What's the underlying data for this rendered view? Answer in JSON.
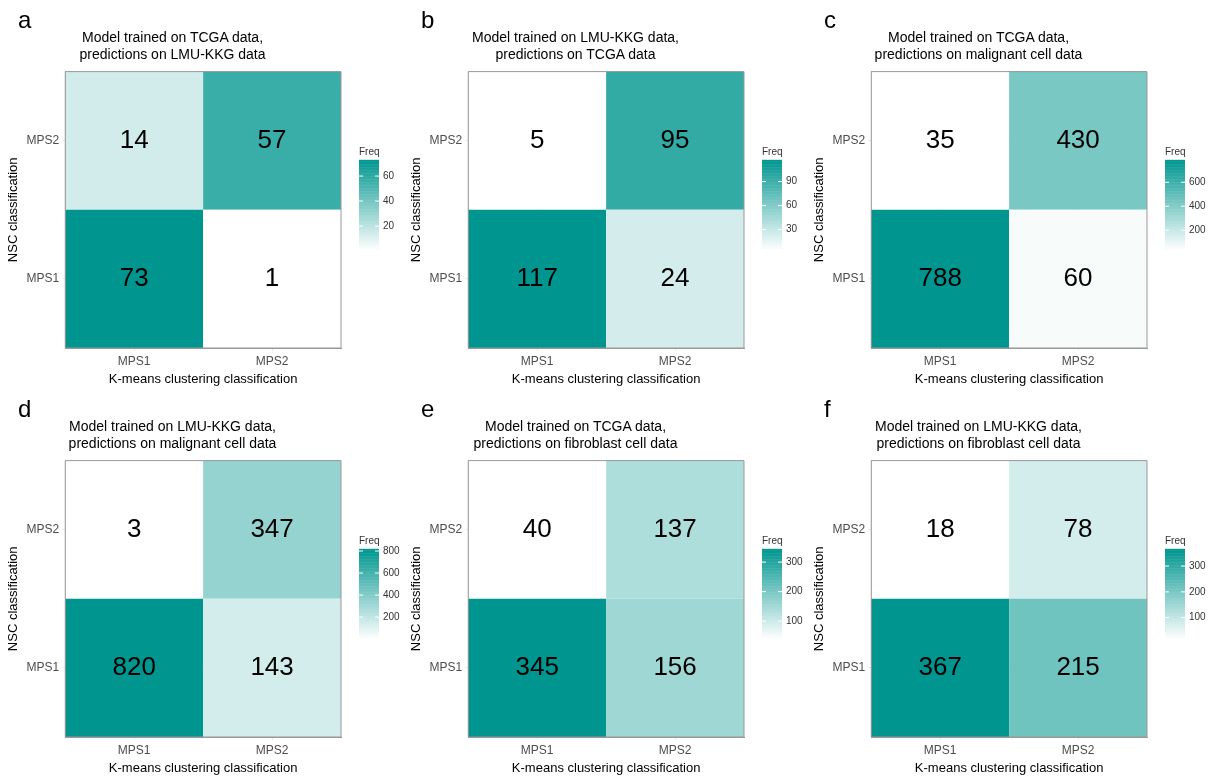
{
  "chart_data": [
    {
      "type": "heatmap",
      "title": "Model trained on TCGA data,\npredictions on LMU-KKG data",
      "xlabel": "K-means clustering classification",
      "ylabel": "NSC classification",
      "clabel": "Freq",
      "annotations": [
        "a"
      ],
      "categories": [
        "MPS1",
        "MPS2"
      ],
      "y_categories": [
        "MPS2",
        "MPS1"
      ],
      "cells": [
        [
          14,
          57
        ],
        [
          73,
          1
        ]
      ],
      "clim": [
        1,
        73
      ],
      "cticks": [
        20,
        40,
        60
      ],
      "data_labels": true
    },
    {
      "type": "heatmap",
      "title": "Model trained on LMU-KKG data,\npredictions on TCGA data",
      "xlabel": "K-means clustering classification",
      "ylabel": "NSC classification",
      "clabel": "Freq",
      "annotations": [
        "b"
      ],
      "categories": [
        "MPS1",
        "MPS2"
      ],
      "y_categories": [
        "MPS2",
        "MPS1"
      ],
      "cells": [
        [
          5,
          95
        ],
        [
          117,
          24
        ]
      ],
      "clim": [
        5,
        117
      ],
      "cticks": [
        30,
        60,
        90
      ],
      "data_labels": true
    },
    {
      "type": "heatmap",
      "title": "Model trained on TCGA data,\npredictions on malignant cell data",
      "xlabel": "K-means clustering classification",
      "ylabel": "NSC classification",
      "clabel": "Freq",
      "annotations": [
        "c"
      ],
      "categories": [
        "MPS1",
        "MPS2"
      ],
      "y_categories": [
        "MPS2",
        "MPS1"
      ],
      "cells": [
        [
          35,
          430
        ],
        [
          788,
          60
        ]
      ],
      "clim": [
        35,
        788
      ],
      "cticks": [
        200,
        400,
        600
      ],
      "data_labels": true
    },
    {
      "type": "heatmap",
      "title": "Model trained on LMU-KKG data,\npredictions on malignant cell data",
      "xlabel": "K-means clustering classification",
      "ylabel": "NSC classification",
      "clabel": "Freq",
      "annotations": [
        "d"
      ],
      "categories": [
        "MPS1",
        "MPS2"
      ],
      "y_categories": [
        "MPS2",
        "MPS1"
      ],
      "cells": [
        [
          3,
          347
        ],
        [
          820,
          143
        ]
      ],
      "clim": [
        3,
        820
      ],
      "cticks": [
        200,
        400,
        600,
        800
      ],
      "data_labels": true
    },
    {
      "type": "heatmap",
      "title": "Model trained on TCGA data,\npredictions on fibroblast cell data",
      "xlabel": "K-means clustering classification",
      "ylabel": "NSC classification",
      "clabel": "Freq",
      "annotations": [
        "e"
      ],
      "categories": [
        "MPS1",
        "MPS2"
      ],
      "y_categories": [
        "MPS2",
        "MPS1"
      ],
      "cells": [
        [
          40,
          137
        ],
        [
          345,
          156
        ]
      ],
      "clim": [
        40,
        345
      ],
      "cticks": [
        100,
        200,
        300
      ],
      "data_labels": true
    },
    {
      "type": "heatmap",
      "title": "Model trained on LMU-KKG data,\npredictions on fibroblast cell data",
      "xlabel": "K-means clustering classification",
      "ylabel": "NSC classification",
      "clabel": "Freq",
      "annotations": [
        "f"
      ],
      "categories": [
        "MPS1",
        "MPS2"
      ],
      "y_categories": [
        "MPS2",
        "MPS1"
      ],
      "cells": [
        [
          18,
          78
        ],
        [
          367,
          215
        ]
      ],
      "clim": [
        18,
        367
      ],
      "cticks": [
        100,
        200,
        300
      ],
      "data_labels": true
    }
  ]
}
